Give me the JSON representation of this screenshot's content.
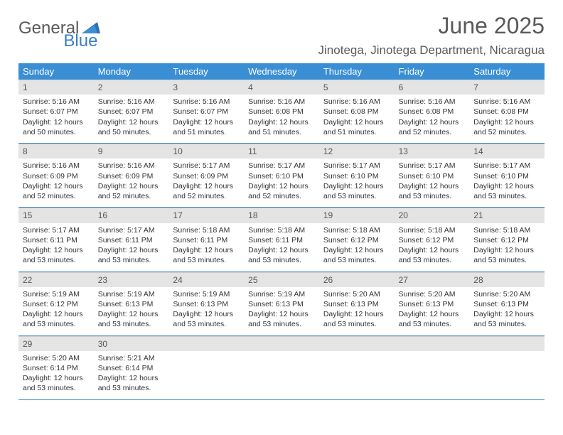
{
  "logo": {
    "text1": "General",
    "text2": "Blue"
  },
  "title": "June 2025",
  "location": "Jinotega, Jinotega Department, Nicaragua",
  "colors": {
    "header_bg": "#3a8fd4",
    "header_text": "#ffffff",
    "daynum_bg": "#e4e4e4",
    "border": "#3a7fc4",
    "title_color": "#5a5a5a",
    "logo_blue": "#3a7fc4",
    "logo_gray": "#5a5a5a"
  },
  "weekdays": [
    "Sunday",
    "Monday",
    "Tuesday",
    "Wednesday",
    "Thursday",
    "Friday",
    "Saturday"
  ],
  "weeks": [
    [
      {
        "n": "1",
        "sr": "Sunrise: 5:16 AM",
        "ss": "Sunset: 6:07 PM",
        "d1": "Daylight: 12 hours",
        "d2": "and 50 minutes."
      },
      {
        "n": "2",
        "sr": "Sunrise: 5:16 AM",
        "ss": "Sunset: 6:07 PM",
        "d1": "Daylight: 12 hours",
        "d2": "and 50 minutes."
      },
      {
        "n": "3",
        "sr": "Sunrise: 5:16 AM",
        "ss": "Sunset: 6:07 PM",
        "d1": "Daylight: 12 hours",
        "d2": "and 51 minutes."
      },
      {
        "n": "4",
        "sr": "Sunrise: 5:16 AM",
        "ss": "Sunset: 6:08 PM",
        "d1": "Daylight: 12 hours",
        "d2": "and 51 minutes."
      },
      {
        "n": "5",
        "sr": "Sunrise: 5:16 AM",
        "ss": "Sunset: 6:08 PM",
        "d1": "Daylight: 12 hours",
        "d2": "and 51 minutes."
      },
      {
        "n": "6",
        "sr": "Sunrise: 5:16 AM",
        "ss": "Sunset: 6:08 PM",
        "d1": "Daylight: 12 hours",
        "d2": "and 52 minutes."
      },
      {
        "n": "7",
        "sr": "Sunrise: 5:16 AM",
        "ss": "Sunset: 6:08 PM",
        "d1": "Daylight: 12 hours",
        "d2": "and 52 minutes."
      }
    ],
    [
      {
        "n": "8",
        "sr": "Sunrise: 5:16 AM",
        "ss": "Sunset: 6:09 PM",
        "d1": "Daylight: 12 hours",
        "d2": "and 52 minutes."
      },
      {
        "n": "9",
        "sr": "Sunrise: 5:16 AM",
        "ss": "Sunset: 6:09 PM",
        "d1": "Daylight: 12 hours",
        "d2": "and 52 minutes."
      },
      {
        "n": "10",
        "sr": "Sunrise: 5:17 AM",
        "ss": "Sunset: 6:09 PM",
        "d1": "Daylight: 12 hours",
        "d2": "and 52 minutes."
      },
      {
        "n": "11",
        "sr": "Sunrise: 5:17 AM",
        "ss": "Sunset: 6:10 PM",
        "d1": "Daylight: 12 hours",
        "d2": "and 52 minutes."
      },
      {
        "n": "12",
        "sr": "Sunrise: 5:17 AM",
        "ss": "Sunset: 6:10 PM",
        "d1": "Daylight: 12 hours",
        "d2": "and 53 minutes."
      },
      {
        "n": "13",
        "sr": "Sunrise: 5:17 AM",
        "ss": "Sunset: 6:10 PM",
        "d1": "Daylight: 12 hours",
        "d2": "and 53 minutes."
      },
      {
        "n": "14",
        "sr": "Sunrise: 5:17 AM",
        "ss": "Sunset: 6:10 PM",
        "d1": "Daylight: 12 hours",
        "d2": "and 53 minutes."
      }
    ],
    [
      {
        "n": "15",
        "sr": "Sunrise: 5:17 AM",
        "ss": "Sunset: 6:11 PM",
        "d1": "Daylight: 12 hours",
        "d2": "and 53 minutes."
      },
      {
        "n": "16",
        "sr": "Sunrise: 5:17 AM",
        "ss": "Sunset: 6:11 PM",
        "d1": "Daylight: 12 hours",
        "d2": "and 53 minutes."
      },
      {
        "n": "17",
        "sr": "Sunrise: 5:18 AM",
        "ss": "Sunset: 6:11 PM",
        "d1": "Daylight: 12 hours",
        "d2": "and 53 minutes."
      },
      {
        "n": "18",
        "sr": "Sunrise: 5:18 AM",
        "ss": "Sunset: 6:11 PM",
        "d1": "Daylight: 12 hours",
        "d2": "and 53 minutes."
      },
      {
        "n": "19",
        "sr": "Sunrise: 5:18 AM",
        "ss": "Sunset: 6:12 PM",
        "d1": "Daylight: 12 hours",
        "d2": "and 53 minutes."
      },
      {
        "n": "20",
        "sr": "Sunrise: 5:18 AM",
        "ss": "Sunset: 6:12 PM",
        "d1": "Daylight: 12 hours",
        "d2": "and 53 minutes."
      },
      {
        "n": "21",
        "sr": "Sunrise: 5:18 AM",
        "ss": "Sunset: 6:12 PM",
        "d1": "Daylight: 12 hours",
        "d2": "and 53 minutes."
      }
    ],
    [
      {
        "n": "22",
        "sr": "Sunrise: 5:19 AM",
        "ss": "Sunset: 6:12 PM",
        "d1": "Daylight: 12 hours",
        "d2": "and 53 minutes."
      },
      {
        "n": "23",
        "sr": "Sunrise: 5:19 AM",
        "ss": "Sunset: 6:13 PM",
        "d1": "Daylight: 12 hours",
        "d2": "and 53 minutes."
      },
      {
        "n": "24",
        "sr": "Sunrise: 5:19 AM",
        "ss": "Sunset: 6:13 PM",
        "d1": "Daylight: 12 hours",
        "d2": "and 53 minutes."
      },
      {
        "n": "25",
        "sr": "Sunrise: 5:19 AM",
        "ss": "Sunset: 6:13 PM",
        "d1": "Daylight: 12 hours",
        "d2": "and 53 minutes."
      },
      {
        "n": "26",
        "sr": "Sunrise: 5:20 AM",
        "ss": "Sunset: 6:13 PM",
        "d1": "Daylight: 12 hours",
        "d2": "and 53 minutes."
      },
      {
        "n": "27",
        "sr": "Sunrise: 5:20 AM",
        "ss": "Sunset: 6:13 PM",
        "d1": "Daylight: 12 hours",
        "d2": "and 53 minutes."
      },
      {
        "n": "28",
        "sr": "Sunrise: 5:20 AM",
        "ss": "Sunset: 6:13 PM",
        "d1": "Daylight: 12 hours",
        "d2": "and 53 minutes."
      }
    ],
    [
      {
        "n": "29",
        "sr": "Sunrise: 5:20 AM",
        "ss": "Sunset: 6:14 PM",
        "d1": "Daylight: 12 hours",
        "d2": "and 53 minutes."
      },
      {
        "n": "30",
        "sr": "Sunrise: 5:21 AM",
        "ss": "Sunset: 6:14 PM",
        "d1": "Daylight: 12 hours",
        "d2": "and 53 minutes."
      },
      {
        "empty": true
      },
      {
        "empty": true
      },
      {
        "empty": true
      },
      {
        "empty": true
      },
      {
        "empty": true
      }
    ]
  ]
}
